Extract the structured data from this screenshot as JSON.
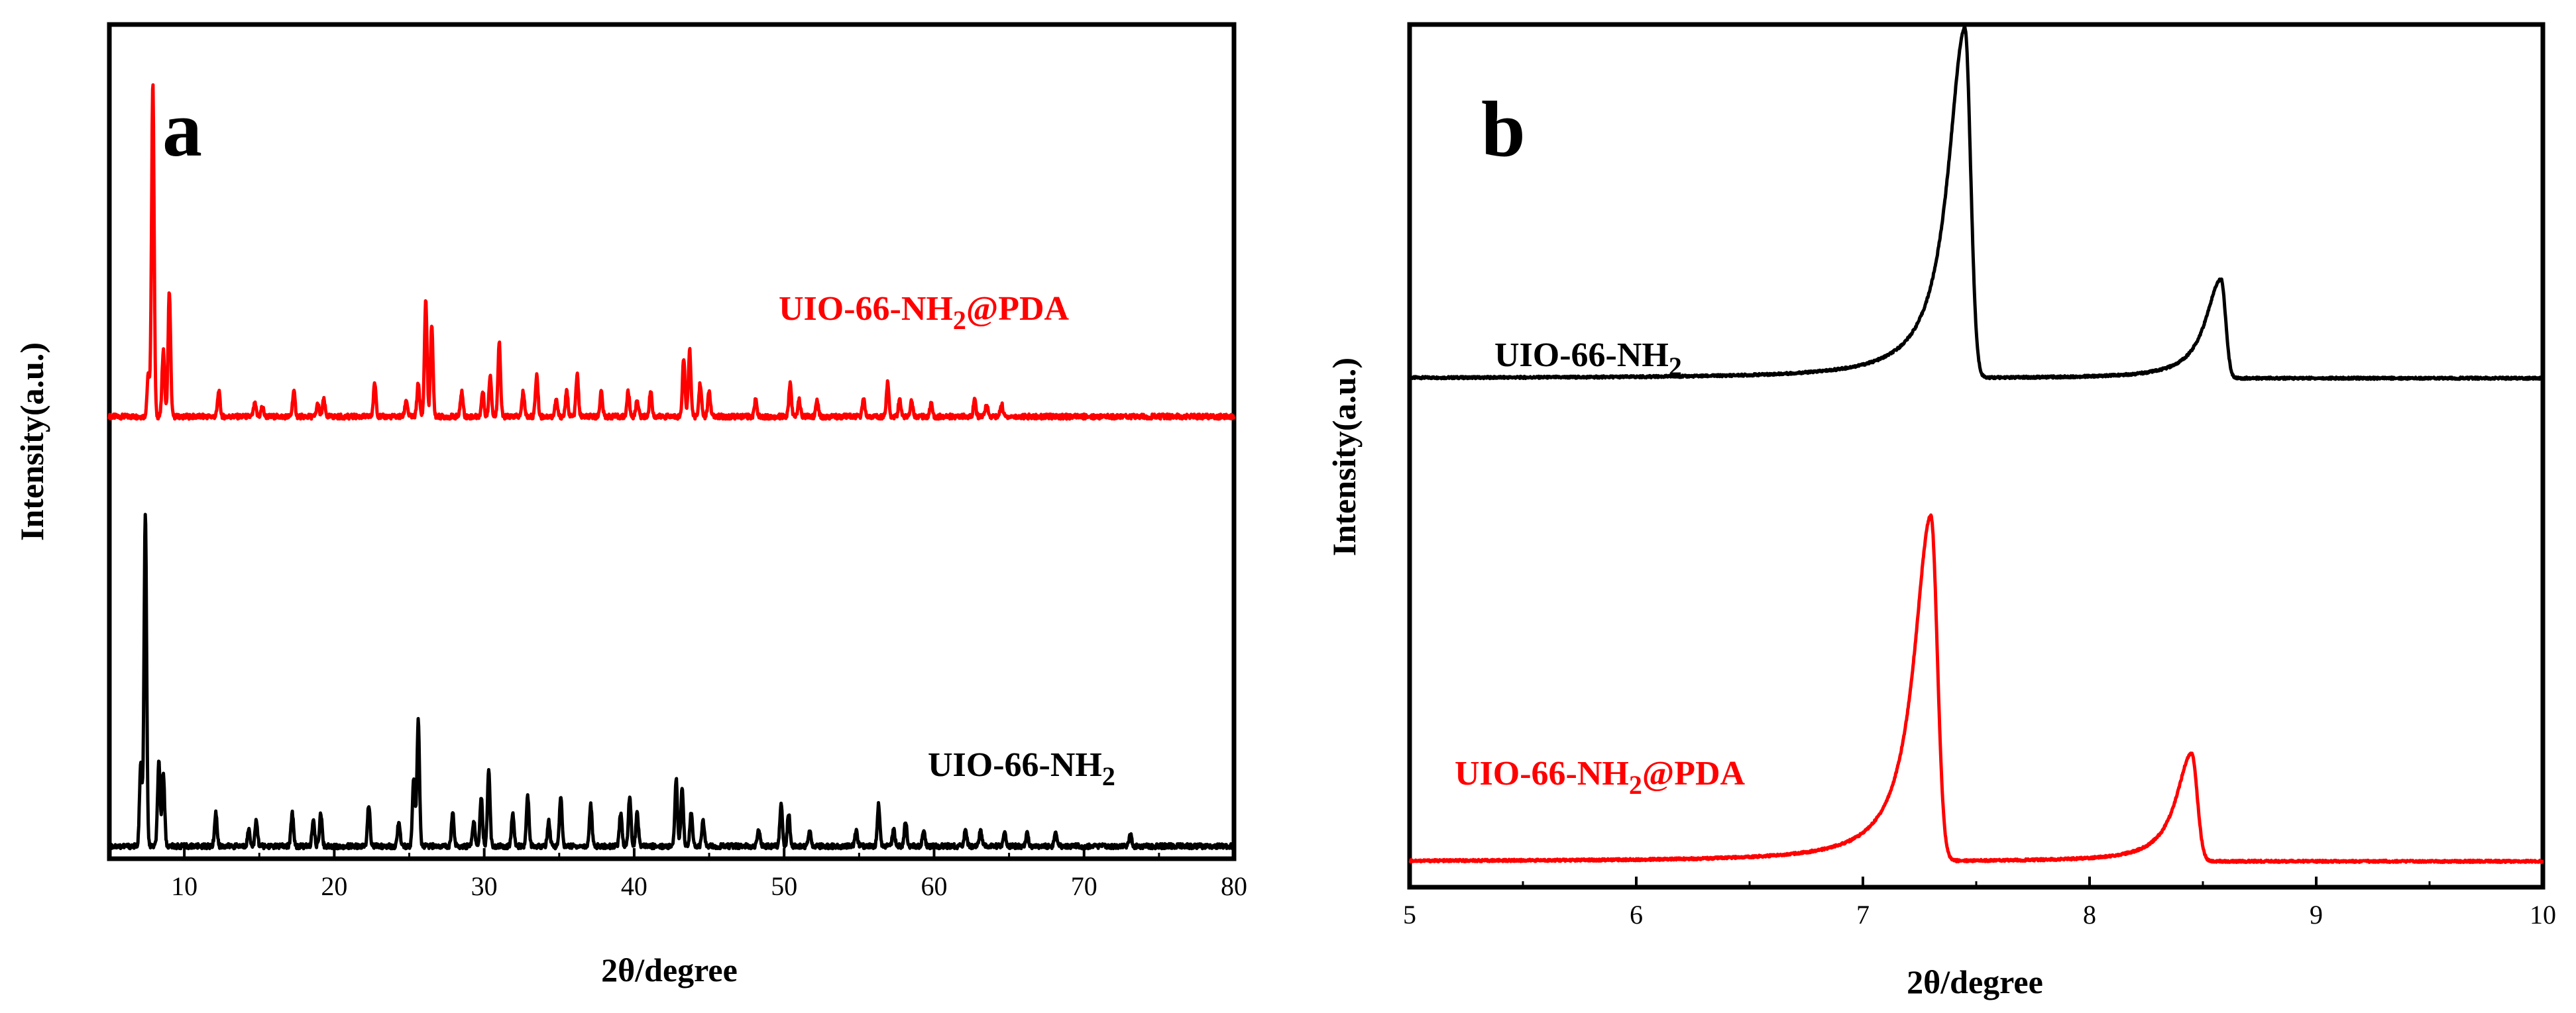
{
  "colors": {
    "red": "#ff0000",
    "black": "#000000"
  },
  "chart_data": [
    {
      "type": "line",
      "panel_label": "a",
      "xlabel": "2θ/degree",
      "ylabel": "Intensity(a.u.)",
      "xlim": [
        5,
        80
      ],
      "ylim": [
        0,
        100
      ],
      "xticks": [
        10,
        20,
        30,
        40,
        50,
        60,
        70,
        80
      ],
      "xtick_labels": [
        "10",
        "20",
        "30",
        "40",
        "50",
        "60",
        "70",
        "80"
      ],
      "series": [
        {
          "name": "UIO-66-NH2@PDA",
          "label_main": "UIO-66-NH",
          "label_sub": "2",
          "label_tail": "@PDA",
          "color": "#ff0000",
          "baseline": 53,
          "peaks": [
            [
              7.6,
              5
            ],
            [
              7.9,
              40
            ],
            [
              8.6,
              8
            ],
            [
              9.0,
              15
            ],
            [
              12.3,
              3
            ],
            [
              14.7,
              1.5
            ],
            [
              15.2,
              1.2
            ],
            [
              17.3,
              3
            ],
            [
              18.9,
              1.5
            ],
            [
              19.3,
              2
            ],
            [
              22.7,
              4
            ],
            [
              24.8,
              2
            ],
            [
              25.6,
              4
            ],
            [
              26.1,
              14
            ],
            [
              26.5,
              11
            ],
            [
              28.5,
              3
            ],
            [
              29.9,
              3
            ],
            [
              30.4,
              5
            ],
            [
              31.0,
              9
            ],
            [
              32.6,
              3
            ],
            [
              33.5,
              5
            ],
            [
              34.8,
              2
            ],
            [
              35.5,
              3
            ],
            [
              36.2,
              5
            ],
            [
              37.8,
              3
            ],
            [
              39.6,
              3
            ],
            [
              40.2,
              2
            ],
            [
              41.1,
              3
            ],
            [
              43.3,
              7
            ],
            [
              43.7,
              8
            ],
            [
              44.4,
              4
            ],
            [
              45.0,
              3
            ],
            [
              48.1,
              2
            ],
            [
              50.4,
              4
            ],
            [
              51.0,
              2
            ],
            [
              52.2,
              2
            ],
            [
              55.3,
              2
            ],
            [
              56.9,
              4
            ],
            [
              57.7,
              2
            ],
            [
              58.5,
              2
            ],
            [
              59.8,
              1.5
            ],
            [
              62.7,
              2
            ],
            [
              63.5,
              1.5
            ],
            [
              64.5,
              1.5
            ]
          ],
          "width": 0.12
        },
        {
          "name": "UIO-66-NH2",
          "label_main": "UIO-66-NH",
          "label_sub": "2",
          "label_tail": "",
          "color": "#000000",
          "baseline": 1.5,
          "peaks": [
            [
              7.1,
              10
            ],
            [
              7.4,
              40
            ],
            [
              8.3,
              10
            ],
            [
              8.6,
              9
            ],
            [
              12.1,
              4
            ],
            [
              14.3,
              2
            ],
            [
              14.8,
              3
            ],
            [
              17.2,
              4
            ],
            [
              18.6,
              3
            ],
            [
              19.1,
              4
            ],
            [
              22.3,
              5
            ],
            [
              24.3,
              3
            ],
            [
              25.3,
              8
            ],
            [
              25.6,
              15
            ],
            [
              27.9,
              4
            ],
            [
              29.3,
              3
            ],
            [
              29.8,
              6
            ],
            [
              30.3,
              9
            ],
            [
              31.9,
              4
            ],
            [
              32.9,
              6
            ],
            [
              34.3,
              3
            ],
            [
              35.1,
              6
            ],
            [
              37.1,
              5
            ],
            [
              39.1,
              4
            ],
            [
              39.7,
              6
            ],
            [
              40.2,
              4
            ],
            [
              42.8,
              8
            ],
            [
              43.2,
              7
            ],
            [
              43.8,
              4
            ],
            [
              44.6,
              3
            ],
            [
              48.3,
              2
            ],
            [
              49.8,
              5
            ],
            [
              50.3,
              4
            ],
            [
              51.7,
              2
            ],
            [
              54.8,
              2
            ],
            [
              56.3,
              5
            ],
            [
              57.3,
              2
            ],
            [
              58.1,
              3
            ],
            [
              59.3,
              2
            ],
            [
              62.1,
              2
            ],
            [
              63.1,
              2
            ],
            [
              64.7,
              1.5
            ],
            [
              66.2,
              1.5
            ],
            [
              68.1,
              1.5
            ],
            [
              73.1,
              1.5
            ]
          ],
          "width": 0.12
        }
      ]
    },
    {
      "type": "line",
      "panel_label": "b",
      "xlabel": "2θ/degree",
      "ylabel": "Intensity(a.u.)",
      "xlim": [
        5,
        10
      ],
      "ylim": [
        0,
        100
      ],
      "xticks": [
        5,
        6,
        7,
        8,
        9,
        10
      ],
      "xtick_labels": [
        "5",
        "6",
        "7",
        "8",
        "9",
        "10"
      ],
      "series": [
        {
          "name": "UIO-66-NH2",
          "label_main": "UIO-66-NH",
          "label_sub": "2",
          "label_tail": "",
          "color": "#000000",
          "baseline": 59,
          "peaks": [
            [
              7.45,
              40.5,
              0.22,
              0.025
            ],
            [
              8.58,
              11.5,
              0.2,
              0.02
            ]
          ]
        },
        {
          "name": "UIO-66-NH2@PDA",
          "label_main": "UIO-66-NH",
          "label_sub": "2",
          "label_tail": "@PDA",
          "color": "#ff0000",
          "baseline": 3,
          "peaks": [
            [
              7.3,
              40,
              0.22,
              0.028
            ],
            [
              8.45,
              12.5,
              0.2,
              0.025
            ]
          ]
        }
      ]
    }
  ]
}
